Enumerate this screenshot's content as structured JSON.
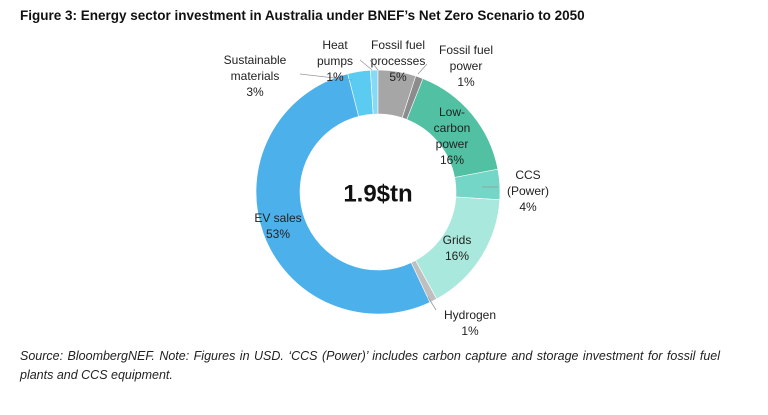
{
  "chart_data": {
    "type": "donut",
    "title": "Figure 3: Energy sector investment in Australia under BNEF’s Net Zero Scenario to 2050",
    "center_label": "1.9$tn",
    "categories": [
      "Fossil fuel processes",
      "Fossil fuel power",
      "Low-carbon power",
      "CCS (Power)",
      "Grids",
      "Hydrogen",
      "EV sales",
      "Sustainable materials",
      "Heat pumps"
    ],
    "values": [
      5,
      1,
      16,
      4,
      16,
      1,
      53,
      3,
      1
    ],
    "value_labels": [
      "5%",
      "1%",
      "16%",
      "4%",
      "16%",
      "1%",
      "53%",
      "3%",
      "1%"
    ],
    "colors": [
      "#a6a6a6",
      "#8c8c8c",
      "#52c0a2",
      "#74d6c6",
      "#a9e8dc",
      "#bfbfbf",
      "#4cb0ea",
      "#5ccbf2",
      "#86daf6"
    ],
    "source": "Source: BloombergNEF. Note: Figures in USD. ‘CCS (Power)’ includes carbon capture and storage investment for fossil fuel plants and CCS equipment."
  }
}
